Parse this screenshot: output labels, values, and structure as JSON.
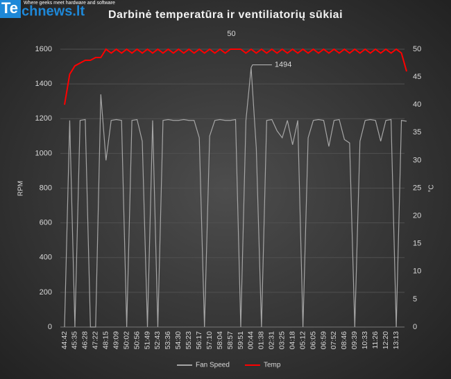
{
  "logo": {
    "prefix": "Te",
    "name": "chnews.lt",
    "tagline": "Where geeks meet hardware and software"
  },
  "chart_data": {
    "type": "line",
    "title": "Darbinė temperatūra ir ventiliatorių sūkiai",
    "ylabel": "RPM",
    "y2label": "°C",
    "categories": [
      "44:42",
      null,
      "45:35",
      null,
      "46:28",
      null,
      "47:22",
      null,
      "48:15",
      null,
      "49:09",
      null,
      "50:02",
      null,
      "50:56",
      null,
      "51:49",
      null,
      "52:43",
      null,
      "53:36",
      null,
      "54:30",
      null,
      "55:23",
      null,
      "56:17",
      null,
      "57:10",
      null,
      "58:04",
      null,
      "58:57",
      null,
      "59:51",
      null,
      "00:44",
      null,
      "01:38",
      null,
      "02:31",
      null,
      "03:25",
      null,
      "04:18",
      null,
      "05:12",
      null,
      "06:05",
      null,
      "06:59",
      null,
      "07:52",
      null,
      "08:46",
      null,
      "09:39",
      null,
      "10:33",
      null,
      "11:26",
      null,
      "12:20",
      null,
      "13:13",
      null,
      null
    ],
    "series": [
      {
        "name": "Fan Speed",
        "color": "#a6a6a6",
        "values": [
          0,
          1190,
          0,
          1190,
          1195,
          0,
          0,
          1340,
          960,
          1190,
          1195,
          1190,
          0,
          1190,
          1195,
          1070,
          0,
          1190,
          0,
          1190,
          1195,
          1190,
          1190,
          1195,
          1190,
          1190,
          1090,
          0,
          1100,
          1190,
          1195,
          1190,
          1190,
          1195,
          0,
          1190,
          1494,
          1030,
          0,
          1190,
          1195,
          1130,
          1090,
          1190,
          1050,
          1190,
          0,
          1090,
          1190,
          1195,
          1190,
          1040,
          1190,
          1195,
          1080,
          1060,
          0,
          1070,
          1190,
          1195,
          1190,
          1070,
          1190,
          1195,
          0,
          1190,
          1185
        ]
      },
      {
        "name": "Temp",
        "color": "#ff0000",
        "axis": "y2",
        "values": [
          40,
          45.5,
          47,
          47.5,
          48,
          48,
          48.5,
          48.5,
          50,
          49.3,
          50,
          49.3,
          50,
          49.3,
          50,
          49.3,
          50,
          49.3,
          50,
          49.3,
          50,
          49.3,
          50,
          49.3,
          50,
          49.3,
          50,
          49.3,
          50,
          49.3,
          50,
          49.3,
          50,
          50,
          50,
          49.3,
          50,
          49.3,
          50,
          49.3,
          50,
          49.3,
          50,
          49.3,
          50,
          49.3,
          50,
          49.3,
          50,
          49.3,
          50,
          49.3,
          50,
          49.3,
          50,
          49.3,
          50,
          49.3,
          50,
          49.3,
          50,
          49.3,
          50,
          49.3,
          50,
          49.3,
          46
        ]
      }
    ],
    "ylim": [
      0,
      1600
    ],
    "yticks": [
      0,
      200,
      400,
      600,
      800,
      1000,
      1200,
      1400,
      1600
    ],
    "y2lim": [
      0,
      50
    ],
    "y2ticks": [
      0,
      5,
      10,
      15,
      20,
      25,
      30,
      35,
      40,
      45,
      50
    ],
    "grid": true,
    "legend": "bottom"
  }
}
